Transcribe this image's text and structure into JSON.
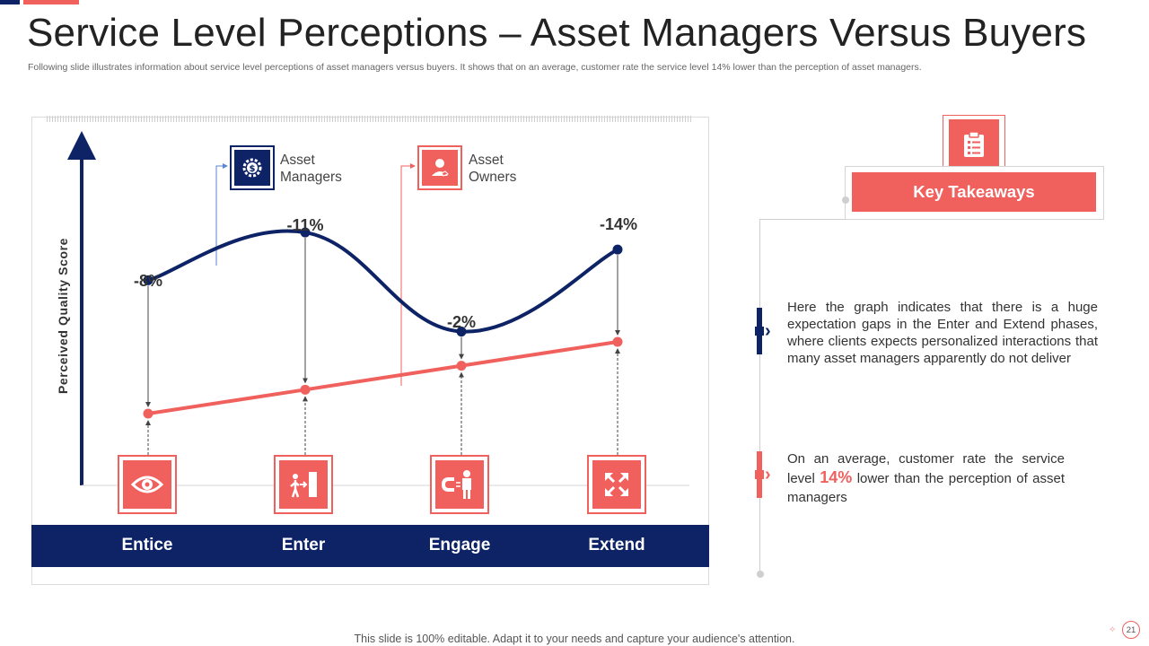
{
  "header": {
    "title": "Service Level Perceptions – Asset Managers Versus Buyers",
    "subtitle": "Following slide illustrates information about service level perceptions of asset managers versus buyers. It shows that on an average, customer rate the service level 14% lower than the perception of asset managers."
  },
  "colors": {
    "navy": "#0d2366",
    "red": "#f0605d"
  },
  "chart_data": {
    "type": "line",
    "title": "",
    "xlabel": "",
    "ylabel": "Perceived Quality Score",
    "categories": [
      "Entice",
      "Enter",
      "Engage",
      "Extend"
    ],
    "ylim": [
      0,
      100
    ],
    "series": [
      {
        "name": "Asset Managers",
        "color": "#0d2366",
        "values": [
          60,
          74,
          45,
          69
        ]
      },
      {
        "name": "Asset Owners",
        "color": "#f0605d",
        "values": [
          21,
          28,
          35,
          42
        ]
      }
    ],
    "gap_labels": [
      "-8%",
      "-11%",
      "-2%",
      "-14%"
    ],
    "legend": [
      {
        "label": "Asset Managers",
        "icon": "dollar-gear-icon",
        "color": "#0d2366"
      },
      {
        "label": "Asset Owners",
        "icon": "user-hand-icon",
        "color": "#f0605d"
      }
    ],
    "phase_icons": [
      "eye-icon",
      "person-exit-door-icon",
      "magnet-person-icon",
      "expand-arrows-icon"
    ]
  },
  "takeaways": {
    "title": "Key Takeaways",
    "icon": "clipboard-checklist-icon",
    "item1": "Here the graph indicates that there is a huge expectation gaps in the Enter and Extend phases, where clients expects personalized interactions that many asset managers apparently do not deliver",
    "item2_prefix": "On an average, customer rate the service level",
    "item2_highlight": "14%",
    "item2_suffix": "lower than the perception of asset managers"
  },
  "footer": {
    "text": "This slide is 100% editable. Adapt it to your needs and capture your audience's attention.",
    "page_number": "21"
  }
}
